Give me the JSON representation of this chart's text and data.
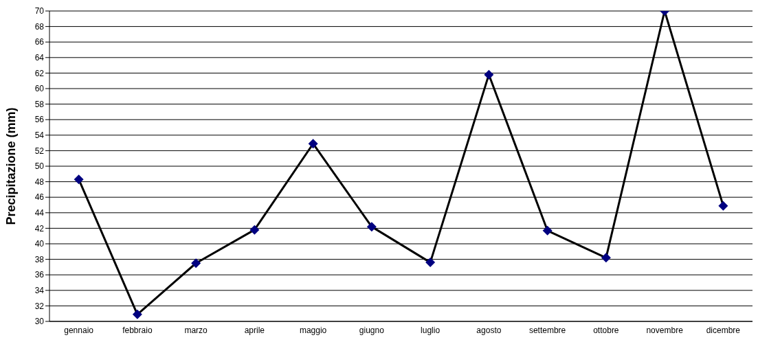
{
  "chart_data": {
    "type": "line",
    "ylabel": "Precipitazione (mm)",
    "categories": [
      "gennaio",
      "febbraio",
      "marzo",
      "aprile",
      "maggio",
      "giugno",
      "luglio",
      "agosto",
      "settembre",
      "ottobre",
      "novembre",
      "dicembre"
    ],
    "series": [
      {
        "color": "#000000",
        "colors": [
          "#000080",
          "#000080",
          "#000080",
          "#000080",
          "#000080",
          "#000080",
          "#000080",
          "#000080",
          "#000080",
          "#000080",
          "#000080",
          "#000080"
        ],
        "values": [
          48.3,
          30.9,
          37.5,
          41.8,
          52.9,
          42.2,
          37.6,
          61.8,
          41.7,
          38.2,
          70,
          44.9
        ]
      }
    ],
    "marker": "diamond",
    "line_style": "solid",
    "ylim": [
      30,
      70
    ],
    "yticks": [
      30,
      32,
      34,
      36,
      38,
      40,
      42,
      44,
      46,
      48,
      50,
      52,
      54,
      56,
      58,
      60,
      62,
      64,
      66,
      68,
      70
    ],
    "grid": "y",
    "legend": false
  }
}
